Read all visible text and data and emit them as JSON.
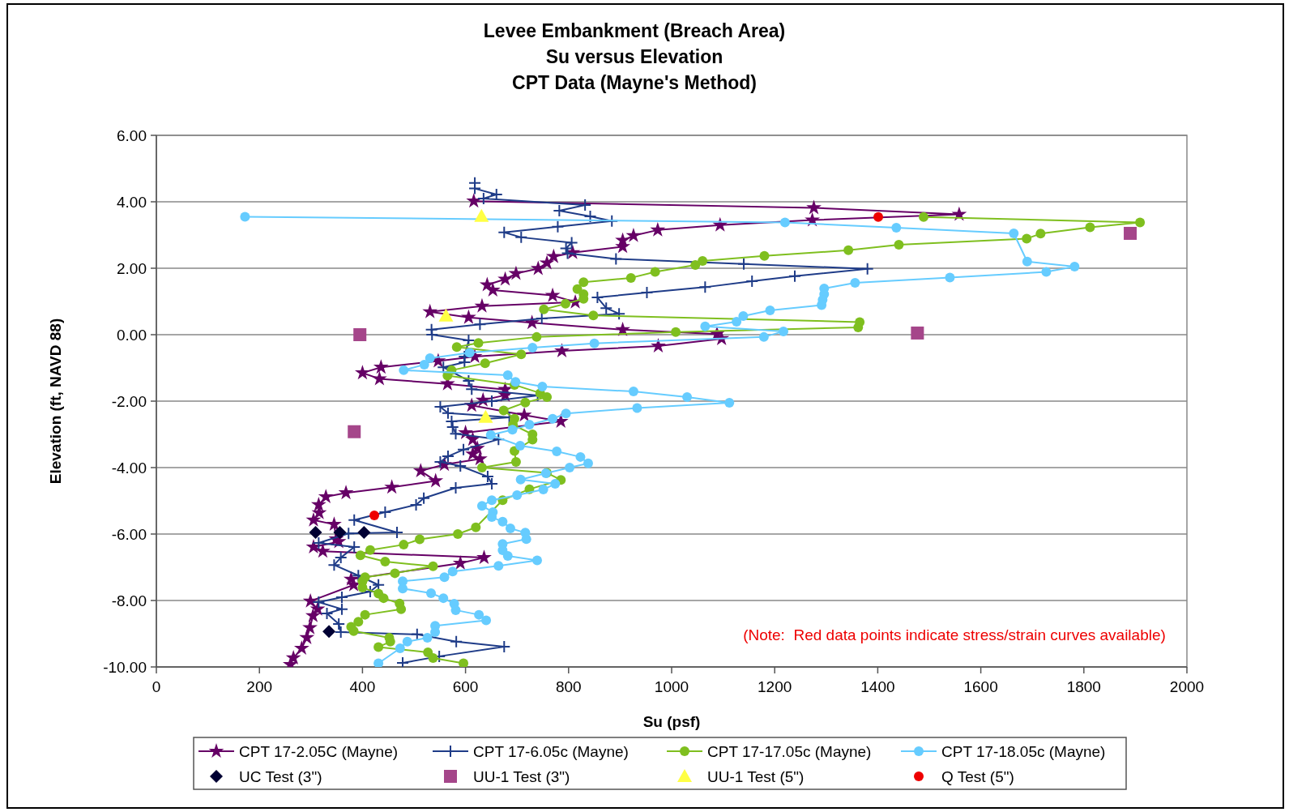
{
  "chart_data": {
    "type": "line",
    "title": "Levee Embankment (Breach Area)\nSu versus Elevation\nCPT Data (Mayne's Method)",
    "xlabel": "Su (psf)",
    "ylabel": "Elevation (ft, NAVD 88)",
    "xlim": [
      0,
      2000
    ],
    "xticks": [
      0,
      200,
      400,
      600,
      800,
      1000,
      1200,
      1400,
      1600,
      1800,
      2000
    ],
    "ylim": [
      -10,
      6
    ],
    "yticks": [
      {
        "value": 6,
        "label": "6.00"
      },
      {
        "value": 4,
        "label": "4.00"
      },
      {
        "value": 2,
        "label": "2.00"
      },
      {
        "value": 0,
        "label": "0.00"
      },
      {
        "value": -2,
        "label": "-2.00"
      },
      {
        "value": -4,
        "label": "-4.00"
      },
      {
        "value": -6,
        "label": "-6.00"
      },
      {
        "value": -8,
        "label": "-8.00"
      },
      {
        "value": -10,
        "label": "-10.00"
      }
    ],
    "grid": "y",
    "legend": "bottom",
    "annotations": [
      "(Note:  Red data points indicate stress/strain curves available)"
    ],
    "series": [
      {
        "name": "CPT 17-2.05C (Mayne)",
        "marker": "star",
        "color": "#660066",
        "x": [
          616,
          1276,
          1558,
          1273,
          1094,
          973,
          926,
          905,
          905,
          808,
          771,
          758,
          741,
          698,
          677,
          642,
          653,
          769,
          813,
          632,
          531,
          606,
          729,
          905,
          1088,
          1097,
          974,
          787,
          618,
          547,
          436,
          400,
          433,
          565,
          677,
          677,
          634,
          612,
          714,
          785,
          600,
          614,
          623,
          614,
          628,
          559,
          513,
          542,
          457,
          368,
          329,
          315,
          316,
          305,
          345,
          349,
          354,
          305,
          323,
          636,
          590,
          378,
          383,
          299,
          313,
          304,
          298,
          292,
          282,
          266,
          260
        ],
        "values": [
          4.02,
          3.82,
          3.62,
          3.45,
          3.3,
          3.15,
          2.98,
          2.84,
          2.65,
          2.47,
          2.35,
          2.16,
          1.99,
          1.84,
          1.67,
          1.5,
          1.34,
          1.18,
          0.98,
          0.86,
          0.69,
          0.52,
          0.36,
          0.15,
          0.02,
          -0.12,
          -0.34,
          -0.49,
          -0.66,
          -0.79,
          -0.98,
          -1.15,
          -1.33,
          -1.48,
          -1.65,
          -1.82,
          -1.97,
          -2.13,
          -2.42,
          -2.61,
          -2.95,
          -3.15,
          -3.42,
          -3.59,
          -3.74,
          -3.91,
          -4.1,
          -4.4,
          -4.59,
          -4.76,
          -4.88,
          -5.12,
          -5.36,
          -5.58,
          -5.71,
          -6.15,
          -6.23,
          -6.39,
          -6.52,
          -6.71,
          -6.88,
          -7.36,
          -7.53,
          -8.02,
          -8.26,
          -8.46,
          -8.82,
          -9.12,
          -9.44,
          -9.73,
          -9.93
        ]
      },
      {
        "name": "CPT 17-6.05c (Mayne)",
        "marker": "cross",
        "color": "#1f3c88",
        "x": [
          618,
          618,
          660,
          635,
          832,
          782,
          842,
          884,
          779,
          675,
          708,
          806,
          795,
          798,
          892,
          1140,
          1380,
          1239,
          1156,
          1065,
          952,
          856,
          873,
          898,
          748,
          628,
          534,
          535,
          606,
          598,
          598,
          557,
          606,
          612,
          740,
          651,
          551,
          566,
          685,
          573,
          575,
          581,
          664,
          596,
          566,
          551,
          590,
          643,
          651,
          581,
          519,
          504,
          444,
          384,
          467,
          373,
          315,
          384,
          358,
          345,
          392,
          431,
          415,
          360,
          315,
          360,
          331,
          354,
          358,
          506,
          582,
          675,
          549,
          478
        ],
        "values": [
          4.57,
          4.4,
          4.22,
          4.1,
          3.9,
          3.73,
          3.56,
          3.42,
          3.25,
          3.08,
          2.93,
          2.77,
          2.6,
          2.45,
          2.28,
          2.13,
          1.98,
          1.76,
          1.61,
          1.43,
          1.27,
          1.12,
          0.8,
          0.63,
          0.49,
          0.31,
          0.15,
          0,
          -0.17,
          -0.66,
          -0.83,
          -0.98,
          -1.39,
          -1.64,
          -1.83,
          -2,
          -2.17,
          -2.36,
          -2.49,
          -2.61,
          -2.78,
          -2.98,
          -3.15,
          -3.46,
          -3.66,
          -3.83,
          -3.95,
          -4.27,
          -4.49,
          -4.61,
          -4.92,
          -5.12,
          -5.34,
          -5.58,
          -5.95,
          -5.98,
          -6.27,
          -6.39,
          -6.71,
          -6.93,
          -7.25,
          -7.53,
          -7.73,
          -7.9,
          -8.05,
          -8.26,
          -8.39,
          -8.71,
          -8.95,
          -9.02,
          -9.24,
          -9.39,
          -9.68,
          -9.88
        ]
      },
      {
        "name": "CPT 17-17.05c (Mayne)",
        "marker": "circle",
        "color": "#7fbf1f",
        "x": [
          1489,
          1909,
          1812,
          1716,
          1689,
          1441,
          1343,
          1180,
          1060,
          1046,
          968,
          921,
          829,
          817,
          829,
          829,
          794,
          752,
          848,
          1365,
          1362,
          1008,
          738,
          625,
          583,
          708,
          638,
          573,
          565,
          695,
          745,
          758,
          716,
          674,
          695,
          692,
          730,
          730,
          695,
          698,
          632,
          758,
          785,
          724,
          672,
          620,
          585,
          511,
          480,
          415,
          396,
          444,
          537,
          463,
          405,
          400,
          400,
          431,
          441,
          472,
          475,
          405,
          392,
          378,
          383,
          452,
          454,
          431,
          527,
          537,
          596
        ],
        "values": [
          3.54,
          3.38,
          3.23,
          3.04,
          2.89,
          2.71,
          2.54,
          2.37,
          2.22,
          2.1,
          1.89,
          1.71,
          1.58,
          1.37,
          1.22,
          1.08,
          0.93,
          0.76,
          0.58,
          0.38,
          0.22,
          0.08,
          -0.07,
          -0.25,
          -0.37,
          -0.59,
          -0.86,
          -1.07,
          -1.23,
          -1.51,
          -1.76,
          -1.88,
          -2.04,
          -2.28,
          -2.53,
          -2.71,
          -3,
          -3.16,
          -3.5,
          -3.83,
          -4,
          -4.16,
          -4.37,
          -4.65,
          -4.98,
          -5.8,
          -6,
          -6.16,
          -6.32,
          -6.48,
          -6.64,
          -6.83,
          -6.97,
          -7.18,
          -7.3,
          -7.42,
          -7.61,
          -7.79,
          -7.93,
          -8.09,
          -8.26,
          -8.43,
          -8.64,
          -8.79,
          -8.92,
          -9.12,
          -9.24,
          -9.4,
          -9.56,
          -9.73,
          -9.89
        ]
      },
      {
        "name": "CPT 17-18.05c (Mayne)",
        "marker": "circle",
        "color": "#66ccff",
        "x": [
          172,
          1220,
          1436,
          1664,
          1690,
          1782,
          1727,
          1540,
          1356,
          1296,
          1296,
          1293,
          1291,
          1191,
          1139,
          1126,
          1065,
          1217,
          1179,
          850,
          730,
          608,
          531,
          520,
          480,
          682,
          697,
          749,
          926,
          1030,
          1112,
          933,
          795,
          769,
          724,
          691,
          649,
          706,
          777,
          823,
          838,
          802,
          756,
          707,
          774,
          751,
          700,
          651,
          632,
          653,
          651,
          672,
          687,
          716,
          718,
          672,
          672,
          682,
          739,
          664,
          575,
          559,
          478,
          478,
          533,
          557,
          578,
          581,
          626,
          640,
          541,
          541,
          526,
          487,
          473,
          431
        ],
        "values": [
          3.55,
          3.38,
          3.22,
          3.05,
          2.2,
          2.05,
          1.89,
          1.72,
          1.56,
          1.39,
          1.22,
          1.05,
          0.89,
          0.73,
          0.56,
          0.39,
          0.25,
          0.1,
          -0.07,
          -0.26,
          -0.39,
          -0.54,
          -0.71,
          -0.9,
          -1.07,
          -1.22,
          -1.42,
          -1.56,
          -1.71,
          -1.88,
          -2.05,
          -2.21,
          -2.37,
          -2.53,
          -2.71,
          -2.86,
          -3.02,
          -3.34,
          -3.51,
          -3.68,
          -3.87,
          -4,
          -4.17,
          -4.36,
          -4.49,
          -4.66,
          -4.83,
          -4.98,
          -5.15,
          -5.34,
          -5.49,
          -5.63,
          -5.83,
          -5.96,
          -6.15,
          -6.3,
          -6.49,
          -6.66,
          -6.79,
          -6.96,
          -7.13,
          -7.3,
          -7.42,
          -7.64,
          -7.78,
          -7.93,
          -8.1,
          -8.29,
          -8.43,
          -8.6,
          -8.76,
          -8.95,
          -9.12,
          -9.24,
          -9.44,
          -9.89
        ]
      },
      {
        "name": "UC Test (3\")",
        "type": "scatter",
        "marker": "diamond",
        "color": "#000033",
        "x": [
          309,
          356,
          403,
          335
        ],
        "values": [
          -5.95,
          -5.95,
          -5.95,
          -8.93
        ]
      },
      {
        "name": "UU-1 Test (3\")",
        "type": "scatter",
        "marker": "square",
        "color": "#a5468a",
        "x": [
          395,
          384,
          1477,
          1890
        ],
        "values": [
          0,
          -2.92,
          0.05,
          3.05
        ]
      },
      {
        "name": "UU-1 Test (5\")",
        "type": "scatter",
        "marker": "triangle",
        "color": "#ffff44",
        "x": [
          631,
          562,
          639
        ],
        "values": [
          3.57,
          0.57,
          -2.48
        ]
      },
      {
        "name": "Q Test (5\")",
        "type": "scatter",
        "marker": "circle",
        "color": "#ee0000",
        "x": [
          1401,
          423
        ],
        "values": [
          3.54,
          -5.44
        ]
      }
    ]
  }
}
